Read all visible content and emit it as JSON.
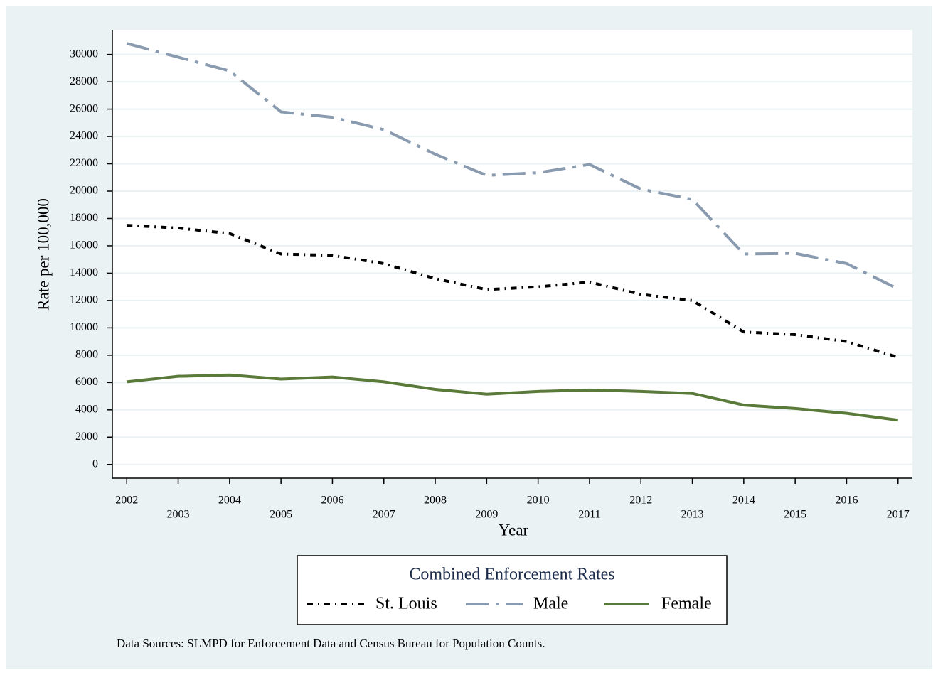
{
  "chart_data": {
    "type": "line",
    "x_label": "Year",
    "y_label": "Rate per 100,000",
    "x": [
      2002,
      2003,
      2004,
      2005,
      2006,
      2007,
      2008,
      2009,
      2010,
      2011,
      2012,
      2013,
      2014,
      2015,
      2016,
      2017
    ],
    "series": [
      {
        "name": "St. Louis",
        "color": "#000000",
        "values": [
          17500,
          17300,
          16900,
          15400,
          15300,
          14700,
          13600,
          12800,
          13000,
          13350,
          12450,
          12000,
          9700,
          9500,
          9000,
          7850
        ]
      },
      {
        "name": "Male",
        "color": "#8a9bb0",
        "values": [
          30800,
          29800,
          28800,
          25800,
          25400,
          24500,
          22700,
          21150,
          21350,
          21950,
          20150,
          19400,
          15400,
          15450,
          14700,
          12850
        ]
      },
      {
        "name": "Female",
        "color": "#5a7a3a",
        "values": [
          6050,
          6450,
          6550,
          6250,
          6400,
          6050,
          5500,
          5150,
          5350,
          5450,
          5350,
          5200,
          4350,
          4100,
          3750,
          3250
        ]
      }
    ],
    "xlim": [
      2001.72,
      2017.28
    ],
    "ylim": [
      -1000,
      31800
    ],
    "xticks": [
      2002,
      2003,
      2004,
      2005,
      2006,
      2007,
      2008,
      2009,
      2010,
      2011,
      2012,
      2013,
      2014,
      2015,
      2016,
      2017
    ],
    "yticks": [
      0,
      2000,
      4000,
      6000,
      8000,
      10000,
      12000,
      14000,
      16000,
      18000,
      20000,
      22000,
      24000,
      26000,
      28000,
      30000
    ],
    "grid": true,
    "legend_title": "Combined Enforcement Rates",
    "note": "Data Sources: SLMPD for Enforcement Data and Census Bureau for Population Counts."
  }
}
